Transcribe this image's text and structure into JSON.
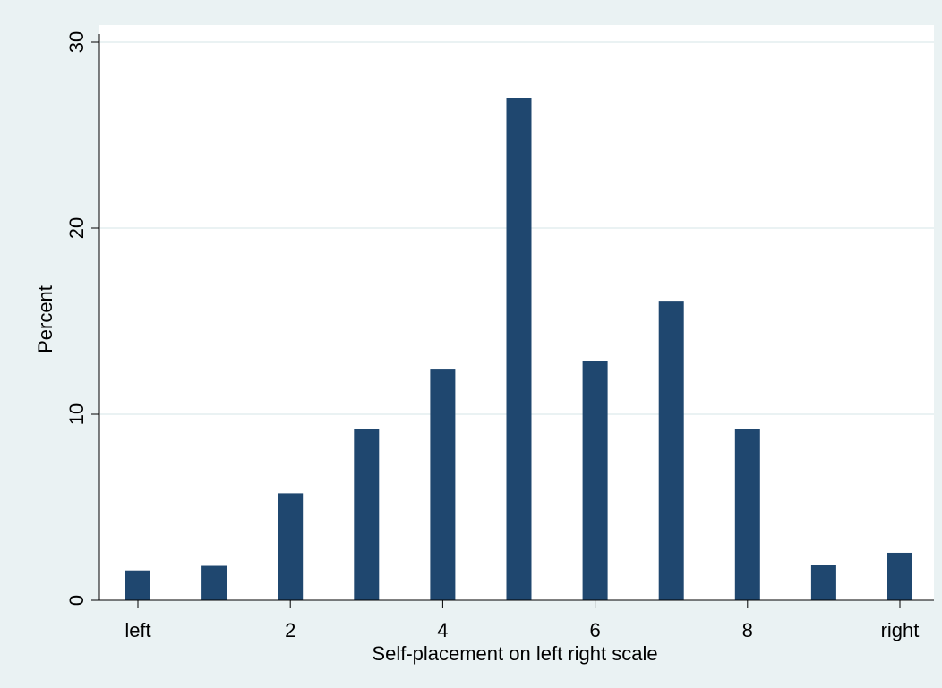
{
  "chart_data": {
    "type": "bar",
    "x": [
      0,
      1,
      2,
      3,
      4,
      5,
      6,
      7,
      8,
      9,
      10
    ],
    "values": [
      1.6,
      1.85,
      5.75,
      9.2,
      12.4,
      27.0,
      12.85,
      16.1,
      9.2,
      1.9,
      2.55
    ],
    "title": "",
    "xlabel": "Self-placement on left right scale",
    "ylabel": "Percent",
    "xlim": [
      0,
      10
    ],
    "ylim": [
      0,
      30
    ],
    "x_ticks": [
      {
        "value": 0,
        "label": "left"
      },
      {
        "value": 2,
        "label": "2"
      },
      {
        "value": 4,
        "label": "4"
      },
      {
        "value": 6,
        "label": "6"
      },
      {
        "value": 8,
        "label": "8"
      },
      {
        "value": 10,
        "label": "right"
      }
    ],
    "y_ticks": [
      {
        "value": 0,
        "label": "0"
      },
      {
        "value": 10,
        "label": "10"
      },
      {
        "value": 20,
        "label": "20"
      },
      {
        "value": 30,
        "label": "30"
      }
    ],
    "grid": "horizontal",
    "legend": "none"
  },
  "colors": {
    "bar": "#1f476f",
    "background": "#eaf2f3",
    "plot_area": "#ffffff",
    "gridline": "#eaf2f3",
    "axis": "#000000"
  }
}
